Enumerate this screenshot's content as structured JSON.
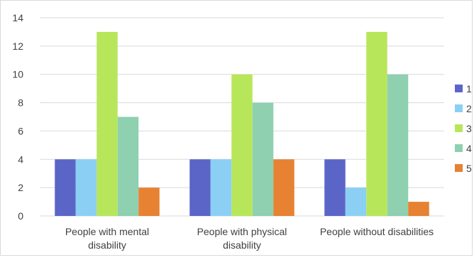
{
  "chart_data": {
    "type": "bar",
    "categories": [
      "People with mental disability",
      "People with physical disability",
      "People without disabilities"
    ],
    "series": [
      {
        "name": "1",
        "values": [
          4,
          4,
          4
        ],
        "color": "#5b65c8"
      },
      {
        "name": "2",
        "values": [
          4,
          4,
          2
        ],
        "color": "#8ccff5"
      },
      {
        "name": "3",
        "values": [
          13,
          10,
          13
        ],
        "color": "#b8e65a"
      },
      {
        "name": "4",
        "values": [
          7,
          8,
          10
        ],
        "color": "#8ed0b0"
      },
      {
        "name": "5",
        "values": [
          2,
          4,
          1
        ],
        "color": "#e68232"
      }
    ],
    "ylim": [
      0,
      14
    ],
    "yticks": [
      0,
      2,
      4,
      6,
      8,
      10,
      12,
      14
    ],
    "grid": true,
    "legend_position": "right",
    "gridline_color": "#d9d9d9"
  }
}
